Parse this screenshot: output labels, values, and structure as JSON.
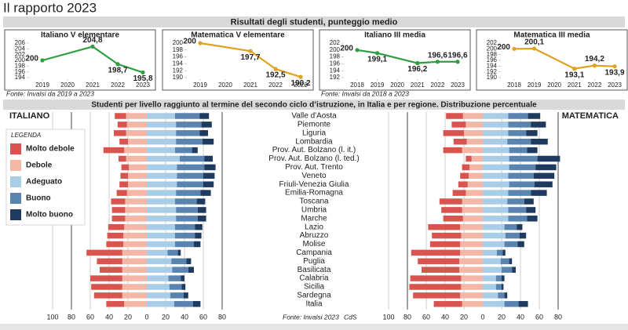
{
  "title": "Il rapporto 2023",
  "section_titles": [
    "Risultati degli studenti, punteggio medio",
    "Studenti per livello raggiunto al termine del secondo ciclo d’istruzione, in Italia e per regione. Distribuzione percentuale"
  ],
  "sources": [
    "Fonte: Invalsi da 2019 a 2023",
    "Fonte: Invalsi da 2018 a 2023",
    "Fonte: Invalsi 2023"
  ],
  "credit": "CdS",
  "chart_data": [
    {
      "type": "line",
      "title": "Italiano V elementare",
      "x": [
        2019,
        2021,
        2022,
        2023
      ],
      "series": [
        {
          "color": "#2e9e3e",
          "values": [
            200,
            204.8,
            198.7,
            195.8
          ],
          "value_labels": [
            "200",
            "204,8",
            "198,7",
            "195,8"
          ]
        }
      ],
      "xlim": [
        2019,
        2023
      ],
      "xticks": [
        2019,
        2020,
        2021,
        2022,
        2023
      ],
      "ylim": [
        194,
        206
      ],
      "yticks": [
        194,
        196,
        198,
        200,
        202,
        204,
        206
      ]
    },
    {
      "type": "line",
      "title": "Matematica V elementare",
      "x": [
        2019,
        2021,
        2022,
        2023
      ],
      "series": [
        {
          "color": "#e0a020",
          "values": [
            200,
            197.7,
            192.5,
            190.2
          ],
          "value_labels": [
            "200",
            "197,7",
            "192,5",
            "190,2"
          ]
        }
      ],
      "xlim": [
        2019,
        2023
      ],
      "xticks": [
        2019,
        2020,
        2021,
        2022,
        2023
      ],
      "ylim": [
        190,
        200
      ],
      "yticks": [
        190,
        192,
        194,
        196,
        198,
        200
      ]
    },
    {
      "type": "line",
      "title": "Italiano III media",
      "x": [
        2018,
        2019,
        2021,
        2022,
        2023
      ],
      "series": [
        {
          "color": "#2e9e3e",
          "values": [
            200,
            199.1,
            196.2,
            196.6,
            196.6
          ],
          "value_labels": [
            "200",
            "199,1",
            "196,2",
            "196,6",
            "196,6"
          ]
        }
      ],
      "xlim": [
        2018,
        2023
      ],
      "xticks": [
        2018,
        2019,
        2020,
        2021,
        2022,
        2023
      ],
      "ylim": [
        192,
        202
      ],
      "yticks": [
        192,
        194,
        196,
        198,
        200,
        202
      ]
    },
    {
      "type": "line",
      "title": "Matematica III media",
      "x": [
        2018,
        2019,
        2021,
        2022,
        2023
      ],
      "series": [
        {
          "color": "#e0a020",
          "values": [
            200,
            200.1,
            193.1,
            194.2,
            193.9
          ],
          "value_labels": [
            "200",
            "200,1",
            "193,1",
            "194,2",
            "193,9"
          ]
        }
      ],
      "xlim": [
        2018,
        2023
      ],
      "xticks": [
        2018,
        2019,
        2020,
        2021,
        2022,
        2023
      ],
      "ylim": [
        190,
        202
      ],
      "yticks": [
        190,
        192,
        194,
        196,
        198,
        200,
        202
      ]
    },
    {
      "type": "diverging_bar",
      "legend_title": "LEGENDA",
      "categories": [
        "Valle d'Aosta",
        "Piemonte",
        "Liguria",
        "Lombardia",
        "Prov. Aut. Bolzano (l. it.)",
        "Prov. Aut. Bolzano (l. ted.)",
        "Prov. Aut. Trento",
        "Veneto",
        "Friuli-Venezia Giulia",
        "Emilia-Romagna",
        "Toscana",
        "Umbria",
        "Marche",
        "Lazio",
        "Abruzzo",
        "Molise",
        "Campania",
        "Puglia",
        "Basilicata",
        "Calabria",
        "Sicilia",
        "Sardegna",
        "Italia"
      ],
      "series": [
        {
          "name": "Molto debole",
          "color": "#d9534f",
          "side": "negative"
        },
        {
          "name": "Debole",
          "color": "#f4b6a6",
          "side": "negative"
        },
        {
          "name": "Adeguato",
          "color": "#a9cde6",
          "side": "positive"
        },
        {
          "name": "Buono",
          "color": "#5a84b0",
          "side": "positive"
        },
        {
          "name": "Molto buono",
          "color": "#1f3a5f",
          "side": "positive"
        }
      ],
      "panels": [
        {
          "title": "ITALIANO",
          "xlim": [
            -100,
            100
          ],
          "xticks": [
            {
              "value": -100,
              "label": "100"
            },
            {
              "value": -80,
              "label": "80"
            },
            {
              "value": -60,
              "label": "60"
            },
            {
              "value": -40,
              "label": "40"
            },
            {
              "value": -20,
              "label": "20"
            },
            0,
            20,
            40,
            60,
            80
          ],
          "values": [
            [
              12,
              22,
              30,
              26,
              10
            ],
            [
              10,
              21,
              31,
              27,
              11
            ],
            [
              13,
              22,
              31,
              25,
              9
            ],
            [
              9,
              20,
              31,
              28,
              12
            ],
            [
              22,
              24,
              30,
              18,
              6
            ],
            [
              8,
              22,
              35,
              26,
              9
            ],
            [
              8,
              19,
              32,
              29,
              12
            ],
            [
              8,
              20,
              32,
              28,
              12
            ],
            [
              9,
              20,
              32,
              28,
              11
            ],
            [
              11,
              21,
              31,
              26,
              11
            ],
            [
              15,
              23,
              30,
              23,
              9
            ],
            [
              14,
              23,
              31,
              23,
              9
            ],
            [
              14,
              23,
              31,
              23,
              9
            ],
            [
              17,
              24,
              30,
              21,
              8
            ],
            [
              17,
              25,
              30,
              21,
              7
            ],
            [
              18,
              25,
              30,
              20,
              7
            ],
            [
              38,
              26,
              22,
              11,
              3
            ],
            [
              27,
              26,
              26,
              16,
              5
            ],
            [
              24,
              26,
              27,
              17,
              6
            ],
            [
              34,
              26,
              23,
              13,
              4
            ],
            [
              33,
              26,
              24,
              13,
              4
            ],
            [
              30,
              26,
              25,
              14,
              5
            ],
            [
              19,
              24,
              29,
              20,
              8
            ]
          ]
        },
        {
          "title": "MATEMATICA",
          "xlim": [
            -100,
            100
          ],
          "xticks": [
            {
              "value": -100,
              "label": "100"
            },
            {
              "value": -80,
              "label": "80"
            },
            {
              "value": -60,
              "label": "60"
            },
            {
              "value": -40,
              "label": "40"
            },
            {
              "value": -20,
              "label": "20"
            },
            0,
            20,
            40,
            60,
            80
          ],
          "values": [
            [
              18,
              21,
              27,
              21,
              13
            ],
            [
              15,
              18,
              27,
              24,
              16
            ],
            [
              22,
              20,
              27,
              19,
              12
            ],
            [
              14,
              17,
              26,
              25,
              18
            ],
            [
              20,
              22,
              28,
              19,
              11
            ],
            [
              6,
              12,
              28,
              30,
              24
            ],
            [
              8,
              14,
              28,
              28,
              22
            ],
            [
              9,
              15,
              27,
              27,
              22
            ],
            [
              10,
              16,
              28,
              27,
              19
            ],
            [
              14,
              18,
              27,
              24,
              17
            ],
            [
              24,
              22,
              26,
              18,
              10
            ],
            [
              22,
              22,
              27,
              19,
              10
            ],
            [
              21,
              21,
              27,
              20,
              11
            ],
            [
              34,
              24,
              23,
              13,
              6
            ],
            [
              31,
              23,
              24,
              15,
              7
            ],
            [
              32,
              24,
              23,
              14,
              7
            ],
            [
              52,
              24,
              15,
              6,
              3
            ],
            [
              44,
              25,
              19,
              9,
              3
            ],
            [
              40,
              25,
              20,
              11,
              4
            ],
            [
              54,
              23,
              14,
              6,
              3
            ],
            [
              55,
              23,
              14,
              6,
              2
            ],
            [
              50,
              24,
              16,
              7,
              3
            ],
            [
              30,
              22,
              23,
              15,
              10
            ]
          ]
        }
      ]
    }
  ]
}
